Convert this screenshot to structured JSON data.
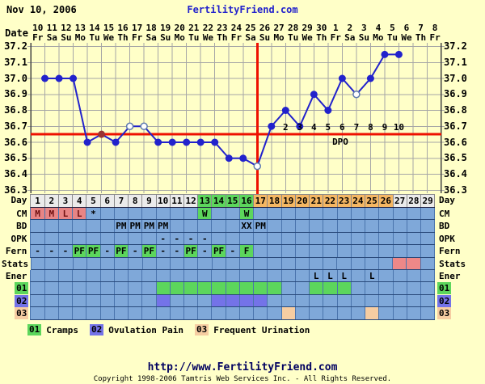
{
  "header": {
    "date": "Nov 10, 2006",
    "site": "FertilityFriend.com"
  },
  "axis": {
    "date_row_label": "Date",
    "dates": [
      "10",
      "11",
      "12",
      "13",
      "14",
      "15",
      "16",
      "17",
      "18",
      "19",
      "20",
      "21",
      "22",
      "23",
      "24",
      "25",
      "26",
      "27",
      "28",
      "29",
      "30",
      "1",
      "2",
      "3",
      "4",
      "5",
      "6",
      "7",
      "8"
    ],
    "weekdays": [
      "Fr",
      "Sa",
      "Su",
      "Mo",
      "Tu",
      "We",
      "Th",
      "Fr",
      "Sa",
      "Su",
      "Mo",
      "Tu",
      "We",
      "Th",
      "Fr",
      "Sa",
      "Su",
      "Mo",
      "Tu",
      "We",
      "Th",
      "Fr",
      "Sa",
      "Su",
      "Mo",
      "Tu",
      "We",
      "Th",
      "Fr"
    ],
    "y_ticks": [
      "37.2",
      "37.1",
      "37.0",
      "36.9",
      "36.8",
      "36.7",
      "36.6",
      "36.5",
      "36.4",
      "36.3"
    ]
  },
  "chart_data": {
    "type": "line",
    "title": "Basal body temperature chart, cycle starting Nov 10 2006",
    "x_days": [
      1,
      2,
      3,
      4,
      5,
      6,
      7,
      8,
      9,
      10,
      11,
      12,
      13,
      14,
      15,
      16,
      17,
      18,
      19,
      20,
      21,
      22,
      23,
      24,
      25,
      26
    ],
    "temps": [
      37.0,
      37.0,
      37.0,
      36.6,
      36.65,
      36.6,
      36.7,
      36.7,
      36.6,
      36.6,
      36.6,
      36.6,
      36.6,
      36.5,
      36.5,
      36.45,
      36.7,
      36.8,
      36.7,
      36.9,
      36.8,
      37.0,
      36.9,
      37.0,
      37.15,
      37.15
    ],
    "point_styles": [
      "f",
      "f",
      "f",
      "f",
      "alt",
      "f",
      "o",
      "o",
      "f",
      "f",
      "f",
      "f",
      "f",
      "f",
      "f",
      "o",
      "f",
      "f",
      "f",
      "f",
      "f",
      "f",
      "o",
      "f",
      "f",
      "f"
    ],
    "coverline_temp": 36.65,
    "ovulation_line_day": 16,
    "dpo_numbers": [
      "2",
      "3",
      "4",
      "5",
      "6",
      "7",
      "8",
      "9",
      "10"
    ],
    "dpo_start_day": 18,
    "dpo_text": "DPO",
    "ylim": [
      36.3,
      37.2
    ],
    "grid": true
  },
  "colors": {
    "plain": "#ebebeb",
    "green": "#5cd65c",
    "orange": "#f5b763",
    "salmon": "#e88585",
    "pink": "#ee8888",
    "purple": "#7473e8",
    "tan": "#f6cda2",
    "row_bg": "#7fa8d9",
    "line_blue": "#2222cc",
    "red": "#ee1100",
    "alt_point": "#993333",
    "open_ring": "#5f7bae",
    "site_blue": "#2222cc"
  },
  "rows": [
    {
      "label": "Day",
      "kind": "day",
      "cells29": [
        {
          "t": "1",
          "bg": "plain"
        },
        {
          "t": "2",
          "bg": "plain"
        },
        {
          "t": "3",
          "bg": "plain"
        },
        {
          "t": "4",
          "bg": "plain"
        },
        {
          "t": "5",
          "bg": "plain"
        },
        {
          "t": "6",
          "bg": "plain"
        },
        {
          "t": "7",
          "bg": "plain"
        },
        {
          "t": "8",
          "bg": "plain"
        },
        {
          "t": "9",
          "bg": "plain"
        },
        {
          "t": "10",
          "bg": "plain"
        },
        {
          "t": "11",
          "bg": "plain"
        },
        {
          "t": "12",
          "bg": "plain"
        },
        {
          "t": "13",
          "bg": "green"
        },
        {
          "t": "14",
          "bg": "green"
        },
        {
          "t": "15",
          "bg": "green"
        },
        {
          "t": "16",
          "bg": "green"
        },
        {
          "t": "17",
          "bg": "orange"
        },
        {
          "t": "18",
          "bg": "orange"
        },
        {
          "t": "19",
          "bg": "orange"
        },
        {
          "t": "20",
          "bg": "orange"
        },
        {
          "t": "21",
          "bg": "orange"
        },
        {
          "t": "22",
          "bg": "orange"
        },
        {
          "t": "23",
          "bg": "orange"
        },
        {
          "t": "24",
          "bg": "orange"
        },
        {
          "t": "25",
          "bg": "orange"
        },
        {
          "t": "26",
          "bg": "orange"
        },
        {
          "t": "27",
          "bg": "plain"
        },
        {
          "t": "28",
          "bg": "plain"
        },
        {
          "t": "29",
          "bg": "plain"
        }
      ]
    },
    {
      "label": "CM",
      "kind": "data",
      "marks": [
        {
          "d": 1,
          "t": "M",
          "bg": "salmon",
          "cm": true
        },
        {
          "d": 2,
          "t": "M",
          "bg": "salmon",
          "cm": true
        },
        {
          "d": 3,
          "t": "L",
          "bg": "salmon",
          "cm": true
        },
        {
          "d": 4,
          "t": "L",
          "bg": "salmon",
          "cm": true
        },
        {
          "d": 5,
          "t": "*"
        },
        {
          "d": 13,
          "t": "W",
          "bg": "green"
        },
        {
          "d": 16,
          "t": "W",
          "bg": "green"
        }
      ]
    },
    {
      "label": "BD",
      "kind": "data",
      "marks": [
        {
          "d": 7,
          "t": "PM"
        },
        {
          "d": 8,
          "t": "PM"
        },
        {
          "d": 9,
          "t": "PM"
        },
        {
          "d": 10,
          "t": "PM"
        },
        {
          "d": 16,
          "t": "XX"
        },
        {
          "d": 17,
          "t": "PM"
        }
      ]
    },
    {
      "label": "OPK",
      "kind": "data",
      "marks": [
        {
          "d": 10,
          "t": "-"
        },
        {
          "d": 11,
          "t": "-"
        },
        {
          "d": 12,
          "t": "-"
        },
        {
          "d": 13,
          "t": "-"
        }
      ]
    },
    {
      "label": "Fern",
      "kind": "data",
      "marks": [
        {
          "d": 1,
          "t": "-"
        },
        {
          "d": 2,
          "t": "-"
        },
        {
          "d": 3,
          "t": "-"
        },
        {
          "d": 4,
          "t": "PF",
          "bg": "green"
        },
        {
          "d": 5,
          "t": "PF",
          "bg": "green"
        },
        {
          "d": 6,
          "t": "-"
        },
        {
          "d": 7,
          "t": "PF",
          "bg": "green"
        },
        {
          "d": 8,
          "t": "-"
        },
        {
          "d": 9,
          "t": "PF",
          "bg": "green"
        },
        {
          "d": 10,
          "t": "-"
        },
        {
          "d": 11,
          "t": "-"
        },
        {
          "d": 12,
          "t": "PF",
          "bg": "green"
        },
        {
          "d": 13,
          "t": "-"
        },
        {
          "d": 14,
          "t": "PF",
          "bg": "green"
        },
        {
          "d": 15,
          "t": "-"
        },
        {
          "d": 16,
          "t": "F",
          "bg": "green"
        }
      ]
    },
    {
      "label": "Stats",
      "kind": "data",
      "marks": [
        {
          "d": 27,
          "bg": "pink"
        },
        {
          "d": 28,
          "bg": "pink"
        }
      ]
    },
    {
      "label": "Ener",
      "kind": "data",
      "marks": [
        {
          "d": 21,
          "t": "L"
        },
        {
          "d": 22,
          "t": "L"
        },
        {
          "d": 23,
          "t": "L"
        },
        {
          "d": 25,
          "t": "L"
        }
      ]
    },
    {
      "label": "01",
      "kind": "data",
      "label_bg": "green",
      "marks": [
        {
          "d": 10,
          "bg": "green"
        },
        {
          "d": 11,
          "bg": "green"
        },
        {
          "d": 12,
          "bg": "green"
        },
        {
          "d": 13,
          "bg": "green"
        },
        {
          "d": 14,
          "bg": "green"
        },
        {
          "d": 15,
          "bg": "green"
        },
        {
          "d": 16,
          "bg": "green"
        },
        {
          "d": 17,
          "bg": "green"
        },
        {
          "d": 18,
          "bg": "green"
        },
        {
          "d": 21,
          "bg": "green"
        },
        {
          "d": 22,
          "bg": "green"
        },
        {
          "d": 23,
          "bg": "green"
        }
      ]
    },
    {
      "label": "02",
      "kind": "data",
      "label_bg": "purple",
      "marks": [
        {
          "d": 10,
          "bg": "purple"
        },
        {
          "d": 14,
          "bg": "purple"
        },
        {
          "d": 15,
          "bg": "purple"
        },
        {
          "d": 16,
          "bg": "purple"
        },
        {
          "d": 17,
          "bg": "purple"
        }
      ]
    },
    {
      "label": "03",
      "kind": "data",
      "label_bg": "tan",
      "marks": [
        {
          "d": 19,
          "bg": "tan"
        },
        {
          "d": 25,
          "bg": "tan"
        }
      ]
    }
  ],
  "legend": [
    {
      "code": "01",
      "label": "Cramps",
      "bg": "green"
    },
    {
      "code": "02",
      "label": "Ovulation Pain",
      "bg": "purple"
    },
    {
      "code": "03",
      "label": "Frequent Urination",
      "bg": "tan"
    }
  ],
  "footer": {
    "url": "http://www.FertilityFriend.com",
    "copyright": "Copyright 1998-2006 Tamtris Web Services Inc. - All Rights Reserved."
  }
}
